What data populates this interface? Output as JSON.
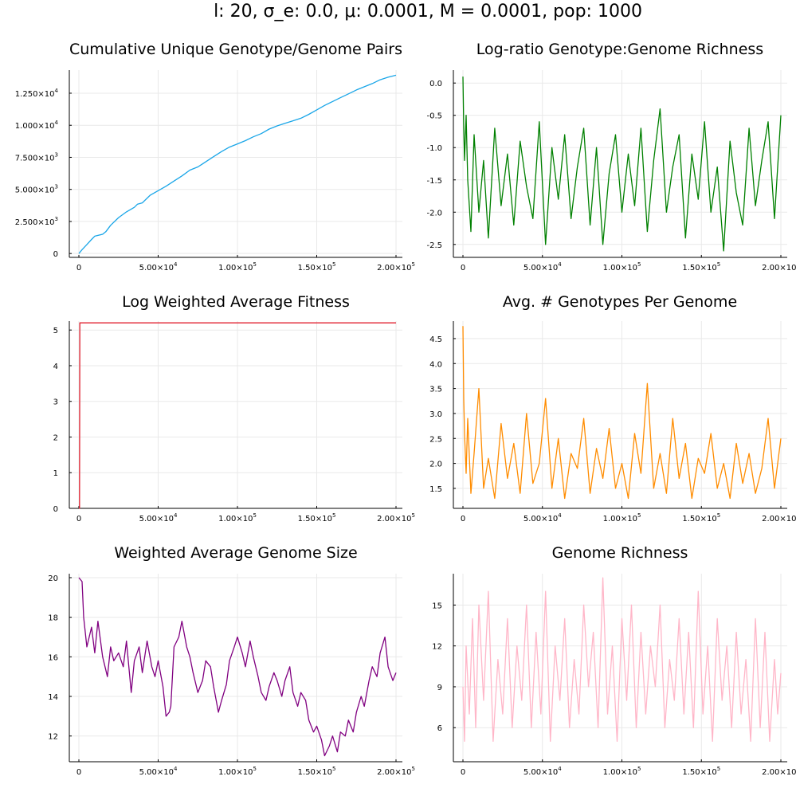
{
  "suptitle": "l: 20, σ_e: 0.0, μ: 0.0001, M = 0.0001, pop: 1000",
  "chart_data": [
    {
      "type": "line",
      "title": "Cumulative Unique Genotype/Genome Pairs",
      "color": "#1aa6e8",
      "xlim": [
        0,
        200000
      ],
      "ylim": [
        -300,
        14300
      ],
      "xticks": [
        {
          "v": 0,
          "label": "0"
        },
        {
          "v": 50000,
          "label": "5.00×10",
          "sup": "4"
        },
        {
          "v": 100000,
          "label": "1.00×10",
          "sup": "5"
        },
        {
          "v": 150000,
          "label": "1.50×10",
          "sup": "5"
        },
        {
          "v": 200000,
          "label": "2.00×10",
          "sup": "5"
        }
      ],
      "yticks": [
        {
          "v": 0,
          "label": "0"
        },
        {
          "v": 2500,
          "label": "2.500×10",
          "sup": "3"
        },
        {
          "v": 5000,
          "label": "5.000×10",
          "sup": "3"
        },
        {
          "v": 7500,
          "label": "7.500×10",
          "sup": "3"
        },
        {
          "v": 10000,
          "label": "1.000×10",
          "sup": "4"
        },
        {
          "v": 12500,
          "label": "1.250×10",
          "sup": "4"
        }
      ],
      "series": [
        {
          "x": [
            0,
            2000,
            5000,
            8000,
            10000,
            15000,
            17000,
            20000,
            25000,
            30000,
            35000,
            37000,
            40000,
            45000,
            50000,
            55000,
            60000,
            65000,
            70000,
            75000,
            80000,
            85000,
            90000,
            95000,
            100000,
            105000,
            110000,
            115000,
            120000,
            125000,
            130000,
            135000,
            140000,
            145000,
            150000,
            155000,
            160000,
            165000,
            170000,
            175000,
            180000,
            185000,
            190000,
            195000,
            200000
          ],
          "y": [
            0,
            300,
            700,
            1100,
            1350,
            1500,
            1700,
            2200,
            2800,
            3250,
            3600,
            3850,
            3950,
            4550,
            4900,
            5250,
            5650,
            6050,
            6500,
            6750,
            7150,
            7550,
            7950,
            8300,
            8550,
            8800,
            9100,
            9350,
            9700,
            9950,
            10150,
            10350,
            10550,
            10850,
            11200,
            11550,
            11850,
            12150,
            12450,
            12750,
            13000,
            13250,
            13550,
            13750,
            13900
          ]
        }
      ]
    },
    {
      "type": "line",
      "title": "Log-ratio Genotype:Genome Richness",
      "color": "#008000",
      "xlim": [
        0,
        200000
      ],
      "ylim": [
        -2.7,
        0.2
      ],
      "xticks": [
        {
          "v": 0,
          "label": "0"
        },
        {
          "v": 50000,
          "label": "5.00×10",
          "sup": "4"
        },
        {
          "v": 100000,
          "label": "1.00×10",
          "sup": "5"
        },
        {
          "v": 150000,
          "label": "1.50×10",
          "sup": "5"
        },
        {
          "v": 200000,
          "label": "2.00×10",
          "sup": "5"
        }
      ],
      "yticks": [
        {
          "v": 0.0,
          "label": "0.0"
        },
        {
          "v": -0.5,
          "label": "-0.5"
        },
        {
          "v": -1.0,
          "label": "-1.0"
        },
        {
          "v": -1.5,
          "label": "-1.5"
        },
        {
          "v": -2.0,
          "label": "-2.0"
        },
        {
          "v": -2.5,
          "label": "-2.5"
        }
      ],
      "series": [
        {
          "x": [
            0,
            500,
            1000,
            2000,
            3000,
            5000,
            7000,
            10000,
            13000,
            16000,
            20000,
            24000,
            28000,
            32000,
            36000,
            40000,
            44000,
            48000,
            52000,
            56000,
            60000,
            64000,
            68000,
            72000,
            76000,
            80000,
            84000,
            88000,
            92000,
            96000,
            100000,
            104000,
            108000,
            112000,
            116000,
            120000,
            124000,
            128000,
            132000,
            136000,
            140000,
            144000,
            148000,
            152000,
            156000,
            160000,
            164000,
            168000,
            172000,
            176000,
            180000,
            184000,
            188000,
            192000,
            196000,
            200000
          ],
          "y": [
            0.1,
            -0.7,
            -1.2,
            -0.5,
            -1.5,
            -2.3,
            -0.8,
            -2.0,
            -1.2,
            -2.4,
            -0.7,
            -1.9,
            -1.1,
            -2.2,
            -0.9,
            -1.6,
            -2.1,
            -0.6,
            -2.5,
            -1.0,
            -1.8,
            -0.8,
            -2.1,
            -1.3,
            -0.7,
            -2.2,
            -1.0,
            -2.5,
            -1.4,
            -0.8,
            -2.0,
            -1.1,
            -1.9,
            -0.7,
            -2.3,
            -1.2,
            -0.4,
            -2.0,
            -1.3,
            -0.8,
            -2.4,
            -1.1,
            -1.8,
            -0.6,
            -2.0,
            -1.3,
            -2.6,
            -0.9,
            -1.7,
            -2.2,
            -0.7,
            -1.9,
            -1.2,
            -0.6,
            -2.1,
            -0.5
          ]
        }
      ]
    },
    {
      "type": "line",
      "title": "Log Weighted Average Fitness",
      "color": "#e0202f",
      "xlim": [
        0,
        200000
      ],
      "ylim": [
        0,
        5.25
      ],
      "xticks": [
        {
          "v": 0,
          "label": "0"
        },
        {
          "v": 50000,
          "label": "5.00×10",
          "sup": "4"
        },
        {
          "v": 100000,
          "label": "1.00×10",
          "sup": "5"
        },
        {
          "v": 150000,
          "label": "1.50×10",
          "sup": "5"
        },
        {
          "v": 200000,
          "label": "2.00×10",
          "sup": "5"
        }
      ],
      "yticks": [
        {
          "v": 0,
          "label": "0"
        },
        {
          "v": 1,
          "label": "1"
        },
        {
          "v": 2,
          "label": "2"
        },
        {
          "v": 3,
          "label": "3"
        },
        {
          "v": 4,
          "label": "4"
        },
        {
          "v": 5,
          "label": "5"
        }
      ],
      "series": [
        {
          "x": [
            0,
            400,
            600,
            200000
          ],
          "y": [
            0,
            0,
            5.2,
            5.2
          ]
        }
      ]
    },
    {
      "type": "line",
      "title": "Avg. # Genotypes Per Genome",
      "color": "#ff8c00",
      "xlim": [
        0,
        200000
      ],
      "ylim": [
        1.1,
        4.85
      ],
      "xticks": [
        {
          "v": 0,
          "label": "0"
        },
        {
          "v": 50000,
          "label": "5.00×10",
          "sup": "4"
        },
        {
          "v": 100000,
          "label": "1.00×10",
          "sup": "5"
        },
        {
          "v": 150000,
          "label": "1.50×10",
          "sup": "5"
        },
        {
          "v": 200000,
          "label": "2.00×10",
          "sup": "5"
        }
      ],
      "yticks": [
        {
          "v": 1.5,
          "label": "1.5"
        },
        {
          "v": 2.0,
          "label": "2.0"
        },
        {
          "v": 2.5,
          "label": "2.5"
        },
        {
          "v": 3.0,
          "label": "3.0"
        },
        {
          "v": 3.5,
          "label": "3.5"
        },
        {
          "v": 4.0,
          "label": "4.0"
        },
        {
          "v": 4.5,
          "label": "4.5"
        }
      ],
      "series": [
        {
          "x": [
            0,
            500,
            1000,
            2000,
            3000,
            5000,
            7000,
            10000,
            13000,
            16000,
            20000,
            24000,
            28000,
            32000,
            36000,
            40000,
            44000,
            48000,
            52000,
            56000,
            60000,
            64000,
            68000,
            72000,
            76000,
            80000,
            84000,
            88000,
            92000,
            96000,
            100000,
            104000,
            108000,
            112000,
            116000,
            120000,
            124000,
            128000,
            132000,
            136000,
            140000,
            144000,
            148000,
            152000,
            156000,
            160000,
            164000,
            168000,
            172000,
            176000,
            180000,
            184000,
            188000,
            192000,
            196000,
            200000
          ],
          "y": [
            4.75,
            3.3,
            2.6,
            1.8,
            2.9,
            1.4,
            2.2,
            3.5,
            1.5,
            2.1,
            1.3,
            2.8,
            1.7,
            2.4,
            1.4,
            3.0,
            1.6,
            2.0,
            3.3,
            1.5,
            2.5,
            1.3,
            2.2,
            1.9,
            2.9,
            1.4,
            2.3,
            1.7,
            2.7,
            1.5,
            2.0,
            1.3,
            2.6,
            1.8,
            3.6,
            1.5,
            2.2,
            1.4,
            2.9,
            1.7,
            2.4,
            1.3,
            2.1,
            1.8,
            2.6,
            1.5,
            2.0,
            1.3,
            2.4,
            1.6,
            2.2,
            1.4,
            1.9,
            2.9,
            1.5,
            2.5
          ]
        }
      ]
    },
    {
      "type": "line",
      "title": "Weighted Average Genome Size",
      "color": "#800080",
      "xlim": [
        0,
        200000
      ],
      "ylim": [
        10.7,
        20.2
      ],
      "xticks": [
        {
          "v": 0,
          "label": "0"
        },
        {
          "v": 50000,
          "label": "5.00×10",
          "sup": "4"
        },
        {
          "v": 100000,
          "label": "1.00×10",
          "sup": "5"
        },
        {
          "v": 150000,
          "label": "1.50×10",
          "sup": "5"
        },
        {
          "v": 200000,
          "label": "2.00×10",
          "sup": "5"
        }
      ],
      "yticks": [
        {
          "v": 12,
          "label": "12"
        },
        {
          "v": 14,
          "label": "14"
        },
        {
          "v": 16,
          "label": "16"
        },
        {
          "v": 18,
          "label": "18"
        },
        {
          "v": 20,
          "label": "20"
        }
      ],
      "series": [
        {
          "x": [
            0,
            2000,
            3000,
            5000,
            8000,
            10000,
            12000,
            15000,
            18000,
            20000,
            22000,
            25000,
            28000,
            30000,
            33000,
            35000,
            38000,
            40000,
            43000,
            46000,
            48000,
            50000,
            53000,
            55000,
            57000,
            58000,
            60000,
            63000,
            65000,
            68000,
            70000,
            72000,
            75000,
            78000,
            80000,
            83000,
            85000,
            88000,
            90000,
            93000,
            95000,
            98000,
            100000,
            103000,
            105000,
            108000,
            110000,
            113000,
            115000,
            118000,
            120000,
            123000,
            125000,
            128000,
            130000,
            133000,
            135000,
            138000,
            140000,
            143000,
            145000,
            148000,
            150000,
            153000,
            155000,
            158000,
            160000,
            163000,
            165000,
            168000,
            170000,
            173000,
            175000,
            178000,
            180000,
            183000,
            185000,
            188000,
            190000,
            193000,
            195000,
            198000,
            200000
          ],
          "y": [
            20.0,
            19.8,
            18.0,
            16.5,
            17.5,
            16.2,
            17.8,
            16.0,
            15.0,
            16.5,
            15.8,
            16.2,
            15.5,
            16.8,
            14.2,
            15.8,
            16.5,
            15.2,
            16.8,
            15.5,
            15.0,
            15.8,
            14.5,
            13.0,
            13.2,
            13.5,
            16.5,
            17.0,
            17.8,
            16.5,
            16.0,
            15.2,
            14.2,
            14.8,
            15.8,
            15.5,
            14.5,
            13.2,
            13.8,
            14.6,
            15.8,
            16.5,
            17.0,
            16.2,
            15.5,
            16.8,
            16.0,
            15.0,
            14.2,
            13.8,
            14.5,
            15.2,
            14.8,
            14.0,
            14.8,
            15.5,
            14.2,
            13.5,
            14.2,
            13.8,
            12.8,
            12.2,
            12.5,
            11.8,
            11.0,
            11.5,
            12.0,
            11.2,
            12.2,
            12.0,
            12.8,
            12.2,
            13.2,
            14.0,
            13.5,
            14.8,
            15.5,
            15.0,
            16.2,
            17.0,
            15.5,
            14.8,
            15.2
          ]
        }
      ]
    },
    {
      "type": "line",
      "title": "Genome Richness",
      "color": "#ffb6c8",
      "xlim": [
        0,
        200000
      ],
      "ylim": [
        3.5,
        17.3
      ],
      "xticks": [
        {
          "v": 0,
          "label": "0"
        },
        {
          "v": 50000,
          "label": "5.00×10",
          "sup": "4"
        },
        {
          "v": 100000,
          "label": "1.00×10",
          "sup": "5"
        },
        {
          "v": 150000,
          "label": "1.50×10",
          "sup": "5"
        },
        {
          "v": 200000,
          "label": "2.00×10",
          "sup": "5"
        }
      ],
      "yticks": [
        {
          "v": 6,
          "label": "6"
        },
        {
          "v": 9,
          "label": "9"
        },
        {
          "v": 12,
          "label": "12"
        },
        {
          "v": 15,
          "label": "15"
        }
      ],
      "series": [
        {
          "x": [
            0,
            1000,
            2000,
            4000,
            6000,
            8000,
            10000,
            13000,
            16000,
            19000,
            22000,
            25000,
            28000,
            31000,
            34000,
            37000,
            40000,
            43000,
            46000,
            49000,
            52000,
            55000,
            58000,
            61000,
            64000,
            67000,
            70000,
            73000,
            76000,
            79000,
            82000,
            85000,
            88000,
            91000,
            94000,
            97000,
            100000,
            103000,
            106000,
            109000,
            112000,
            115000,
            118000,
            121000,
            124000,
            127000,
            130000,
            133000,
            136000,
            139000,
            142000,
            145000,
            148000,
            151000,
            154000,
            157000,
            160000,
            163000,
            166000,
            169000,
            172000,
            175000,
            178000,
            181000,
            184000,
            187000,
            190000,
            193000,
            196000,
            198000,
            200000
          ],
          "y": [
            9,
            5,
            12,
            7,
            14,
            6,
            15,
            8,
            16,
            5,
            11,
            7,
            14,
            6,
            12,
            8,
            15,
            6,
            13,
            7,
            16,
            5,
            12,
            8,
            14,
            6,
            11,
            7,
            15,
            9,
            13,
            6,
            17,
            7,
            12,
            5,
            14,
            8,
            15,
            6,
            13,
            7,
            12,
            9,
            15,
            6,
            11,
            8,
            14,
            7,
            13,
            6,
            16,
            7,
            12,
            5,
            14,
            8,
            12,
            6,
            13,
            7,
            11,
            5,
            14,
            6,
            13,
            5,
            11,
            7,
            10
          ]
        }
      ]
    }
  ]
}
